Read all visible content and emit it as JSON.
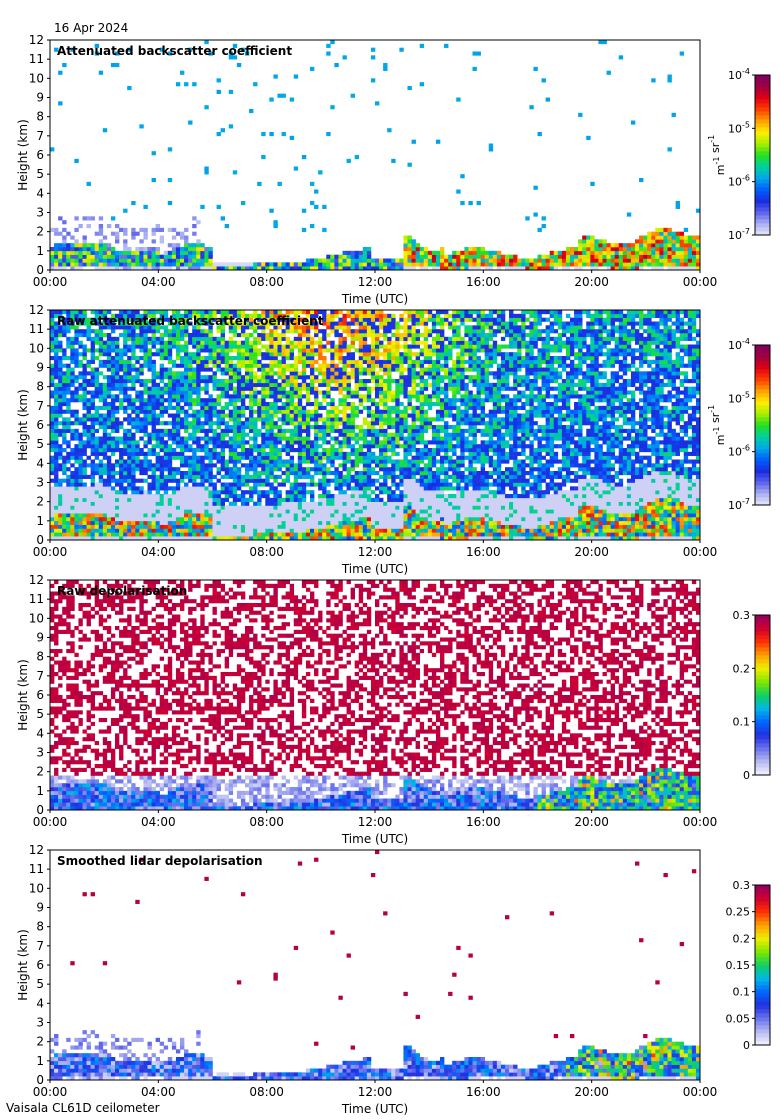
{
  "header": {
    "date": "16 Apr 2024"
  },
  "footer": {
    "instrument": "Vaisala CL61D ceilometer"
  },
  "chart_data": [
    {
      "type": "heatmap",
      "title": "Attenuated backscatter coefficient",
      "xlabel": "Time (UTC)",
      "ylabel": "Height (km)",
      "xticks": [
        "00:00",
        "04:00",
        "08:00",
        "12:00",
        "16:00",
        "20:00",
        "00:00"
      ],
      "xlim": [
        0,
        24
      ],
      "ylim": [
        0,
        12
      ],
      "yticks": [
        0,
        1,
        2,
        3,
        4,
        5,
        6,
        7,
        8,
        9,
        10,
        11,
        12
      ],
      "colorbar": {
        "scale": "log",
        "min": 1e-07,
        "max": 0.0001,
        "ticks": [
          {
            "v": 1e-07,
            "base": "10",
            "exp": "-7"
          },
          {
            "v": 1e-06,
            "base": "10",
            "exp": "-6"
          },
          {
            "v": 1e-05,
            "base": "10",
            "exp": "-5"
          },
          {
            "v": 0.0001,
            "base": "10",
            "exp": "-4"
          }
        ],
        "unit_parts": [
          {
            "t": "m",
            "sup": "-1"
          },
          {
            "t": " sr",
            "sup": "-1"
          }
        ]
      },
      "palette": "backscatter",
      "field": "bsc"
    },
    {
      "type": "heatmap",
      "title": "Raw attenuated backscatter coefficient",
      "xlabel": "Time (UTC)",
      "ylabel": "Height (km)",
      "xticks": [
        "00:00",
        "04:00",
        "08:00",
        "12:00",
        "16:00",
        "20:00",
        "00:00"
      ],
      "xlim": [
        0,
        24
      ],
      "ylim": [
        0,
        12
      ],
      "yticks": [
        0,
        1,
        2,
        3,
        4,
        5,
        6,
        7,
        8,
        9,
        10,
        11,
        12
      ],
      "colorbar": {
        "scale": "log",
        "min": 1e-07,
        "max": 0.0001,
        "ticks": [
          {
            "v": 1e-07,
            "base": "10",
            "exp": "-7"
          },
          {
            "v": 1e-06,
            "base": "10",
            "exp": "-6"
          },
          {
            "v": 1e-05,
            "base": "10",
            "exp": "-5"
          },
          {
            "v": 0.0001,
            "base": "10",
            "exp": "-4"
          }
        ],
        "unit_parts": [
          {
            "t": "m",
            "sup": "-1"
          },
          {
            "t": " sr",
            "sup": "-1"
          }
        ]
      },
      "palette": "backscatter",
      "field": "raw_bsc"
    },
    {
      "type": "heatmap",
      "title": "Raw depolarisation",
      "xlabel": "Time (UTC)",
      "ylabel": "Height (km)",
      "xticks": [
        "00:00",
        "04:00",
        "08:00",
        "12:00",
        "16:00",
        "20:00",
        "00:00"
      ],
      "xlim": [
        0,
        24
      ],
      "ylim": [
        0,
        12
      ],
      "yticks": [
        0,
        1,
        2,
        3,
        4,
        5,
        6,
        7,
        8,
        9,
        10,
        11,
        12
      ],
      "colorbar": {
        "scale": "linear",
        "min": 0,
        "max": 0.3,
        "ticks": [
          {
            "v": 0,
            "label": "0"
          },
          {
            "v": 0.1,
            "label": "0.1"
          },
          {
            "v": 0.2,
            "label": "0.2"
          },
          {
            "v": 0.3,
            "label": "0.3"
          }
        ],
        "unit_parts": []
      },
      "palette": "depol",
      "field": "raw_depol"
    },
    {
      "type": "heatmap",
      "title": "Smoothed lidar depolarisation",
      "xlabel": "Time (UTC)",
      "ylabel": "Height (km)",
      "xticks": [
        "00:00",
        "04:00",
        "08:00",
        "12:00",
        "16:00",
        "20:00",
        "00:00"
      ],
      "xlim": [
        0,
        24
      ],
      "ylim": [
        0,
        12
      ],
      "yticks": [
        0,
        1,
        2,
        3,
        4,
        5,
        6,
        7,
        8,
        9,
        10,
        11,
        12
      ],
      "colorbar": {
        "scale": "linear",
        "min": 0,
        "max": 0.3,
        "ticks": [
          {
            "v": 0,
            "label": "0"
          },
          {
            "v": 0.05,
            "label": "0.05"
          },
          {
            "v": 0.1,
            "label": "0.1"
          },
          {
            "v": 0.15,
            "label": "0.15"
          },
          {
            "v": 0.2,
            "label": "0.2"
          },
          {
            "v": 0.25,
            "label": "0.25"
          },
          {
            "v": 0.3,
            "label": "0.3"
          }
        ],
        "unit_parts": []
      },
      "palette": "depol",
      "field": "smooth_depol"
    }
  ],
  "palettes": {
    "backscatter": [
      "#e8e8f8",
      "#aab0f0",
      "#5a62ee",
      "#1a2ce0",
      "#0060ff",
      "#00a8e8",
      "#00d0a0",
      "#22e020",
      "#aaee00",
      "#ffee00",
      "#ffa000",
      "#ff4000",
      "#e00010",
      "#a00040",
      "#800060"
    ],
    "depol": [
      "#f4f4ff",
      "#b8bcf0",
      "#6a72ee",
      "#2030e0",
      "#0066ff",
      "#00b8e8",
      "#10d060",
      "#80e800",
      "#eeee00",
      "#ffa000",
      "#ff3000",
      "#d00030",
      "#900060"
    ]
  }
}
